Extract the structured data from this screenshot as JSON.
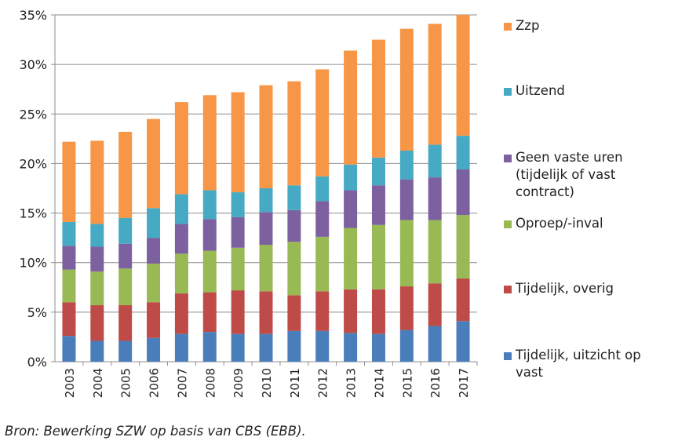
{
  "chart_data": {
    "type": "bar",
    "stacked": true,
    "categories": [
      "2003",
      "2004",
      "2005",
      "2006",
      "2007",
      "2008",
      "2009",
      "2010",
      "2011",
      "2012",
      "2013",
      "2014",
      "2015",
      "2016",
      "2017"
    ],
    "ylim": [
      0,
      35
    ],
    "yticks": [
      "0%",
      "5%",
      "10%",
      "15%",
      "20%",
      "25%",
      "30%",
      "35%"
    ],
    "grid": true,
    "series": [
      {
        "name": "Tijdelijk, uitzicht op vast",
        "color": "#4a7ebb",
        "values": [
          2.6,
          2.1,
          2.1,
          2.4,
          2.8,
          3.0,
          2.8,
          2.8,
          3.1,
          3.1,
          2.9,
          2.8,
          3.2,
          3.6,
          4.1
        ]
      },
      {
        "name": "Tijdelijk, overig",
        "color": "#be4b48",
        "values": [
          3.4,
          3.6,
          3.6,
          3.6,
          4.1,
          4.0,
          4.4,
          4.3,
          3.6,
          4.0,
          4.4,
          4.5,
          4.4,
          4.3,
          4.3
        ]
      },
      {
        "name": "Oproep/-inval",
        "color": "#98b954",
        "values": [
          3.3,
          3.4,
          3.7,
          3.9,
          4.0,
          4.2,
          4.3,
          4.7,
          5.4,
          5.5,
          6.2,
          6.5,
          6.7,
          6.4,
          6.4
        ]
      },
      {
        "name": "Geen vaste uren (tijdelijk of vast contract)",
        "color": "#7d60a0",
        "values": [
          2.4,
          2.5,
          2.5,
          2.6,
          3.0,
          3.2,
          3.1,
          3.3,
          3.2,
          3.6,
          3.8,
          4.0,
          4.1,
          4.3,
          4.6
        ]
      },
      {
        "name": "Uitzend",
        "color": "#46aac5",
        "values": [
          2.4,
          2.3,
          2.6,
          3.0,
          3.0,
          2.9,
          2.5,
          2.4,
          2.5,
          2.5,
          2.6,
          2.8,
          2.9,
          3.3,
          3.4
        ]
      },
      {
        "name": "Zzp",
        "color": "#f79646",
        "values": [
          8.1,
          8.4,
          8.7,
          9.0,
          9.3,
          9.6,
          10.1,
          10.4,
          10.5,
          10.8,
          11.5,
          11.9,
          12.3,
          12.2,
          12.2
        ]
      }
    ]
  },
  "legend": [
    {
      "label": "Zzp",
      "color": "#f79646"
    },
    {
      "label": "Uitzend",
      "color": "#46aac5"
    },
    {
      "label": "Geen vaste uren\n(tijdelijk of vast\ncontract)",
      "color": "#7d60a0"
    },
    {
      "label": "Oproep/-inval",
      "color": "#98b954"
    },
    {
      "label": "Tijdelijk, overig",
      "color": "#be4b48"
    },
    {
      "label": "Tijdelijk, uitzicht op\nvast",
      "color": "#4a7ebb"
    }
  ],
  "source": "Bron: Bewerking SZW op basis van CBS (EBB)."
}
